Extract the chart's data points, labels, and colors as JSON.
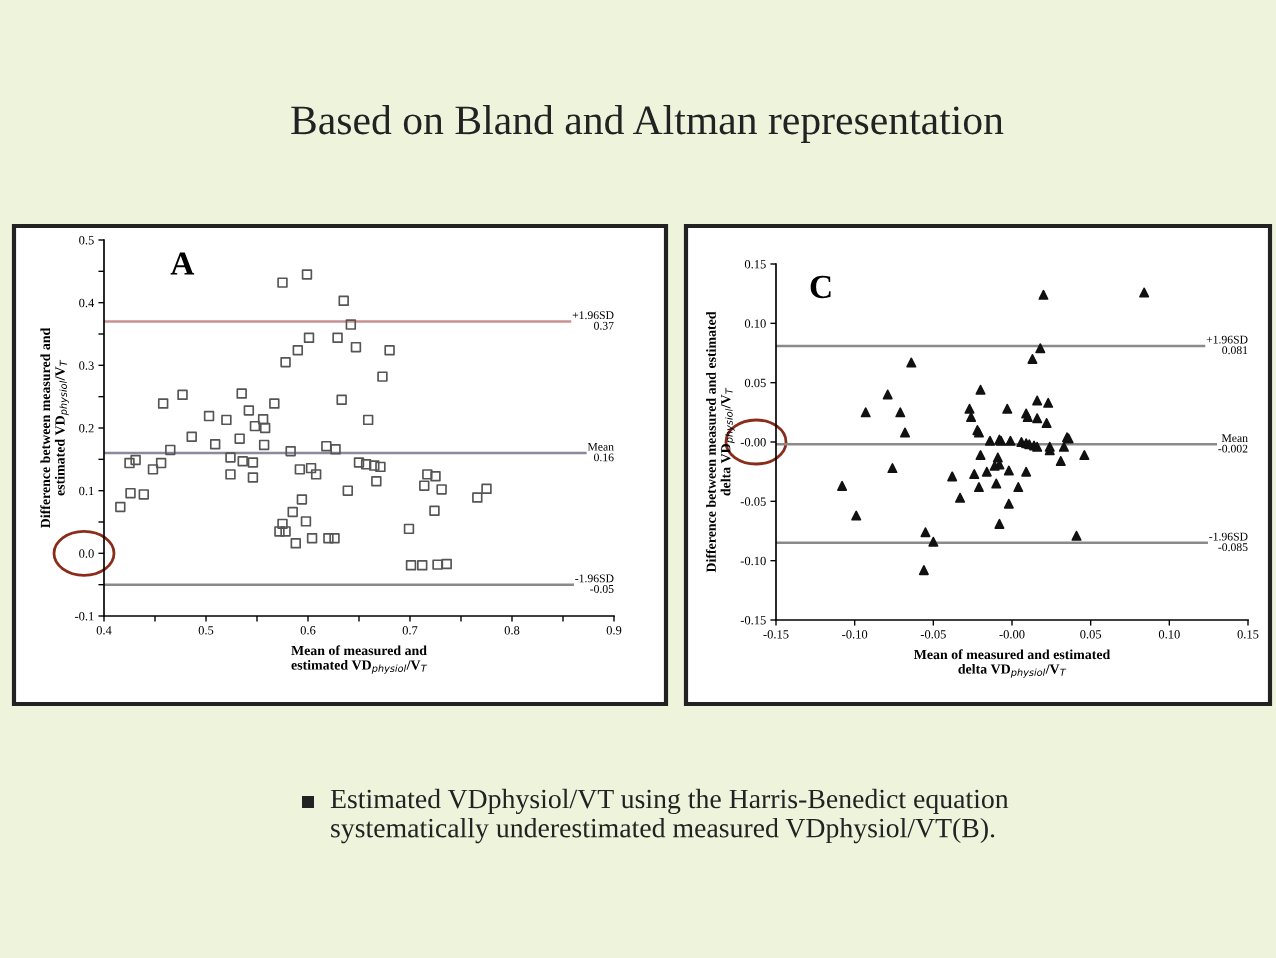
{
  "chart_data": [
    {
      "type": "scatter",
      "title": "A",
      "xlabel": "Mean of measured and\nestimated VD$_{physiol}$/V$_{T}$",
      "ylabel": "Difference between measured and\nestimated VD$_{physiol}$/V$_{T}$",
      "annotations": [
        "Based on Bland and Altman representation"
      ],
      "marker": "square",
      "grid": false,
      "legend": false,
      "xlim": [
        0.4,
        0.9
      ],
      "ylim": [
        -0.1,
        0.5
      ],
      "xticks": [
        0.4,
        {
          "value": 0.45,
          "label": null
        },
        0.5,
        {
          "value": 0.55,
          "label": null
        },
        0.6,
        {
          "value": 0.65,
          "label": null
        },
        0.7,
        {
          "value": 0.75,
          "label": null
        },
        0.8,
        {
          "value": 0.85,
          "label": null
        },
        0.9
      ],
      "yticks": [
        {
          "value": -0.1,
          "label": "-0.1"
        },
        {
          "value": -0.05,
          "label": null
        },
        {
          "value": 0.0,
          "label": "0.0"
        },
        {
          "value": 0.05,
          "label": null
        },
        0.1,
        {
          "value": 0.15,
          "label": null
        },
        0.2,
        {
          "value": 0.25,
          "label": null
        },
        0.3,
        {
          "value": 0.35,
          "label": null
        },
        0.4,
        {
          "value": 0.45,
          "label": null
        },
        0.5
      ],
      "ref_lines": [
        {
          "axis": "y",
          "value": 0.37,
          "label": "+1.96SD\n0.37",
          "color": "#c89090"
        },
        {
          "axis": "y",
          "value": 0.16,
          "label": "Mean\n0.16",
          "color": "#8a8a9a"
        },
        {
          "axis": "y",
          "value": -0.05,
          "label": "-1.96SD\n-0.05",
          "color": "#8a8a8a"
        }
      ],
      "series": [
        {
          "color": "#555555",
          "x": [
            0.575,
            0.599,
            0.635,
            0.642,
            0.601,
            0.629,
            0.647,
            0.59,
            0.68,
            0.578,
            0.673,
            0.633,
            0.458,
            0.477,
            0.535,
            0.567,
            0.542,
            0.503,
            0.52,
            0.556,
            0.548,
            0.558,
            0.659,
            0.486,
            0.509,
            0.533,
            0.557,
            0.465,
            0.583,
            0.618,
            0.627,
            0.425,
            0.431,
            0.456,
            0.448,
            0.524,
            0.536,
            0.546,
            0.65,
            0.657,
            0.665,
            0.671,
            0.592,
            0.603,
            0.608,
            0.524,
            0.546,
            0.667,
            0.717,
            0.725,
            0.714,
            0.731,
            0.426,
            0.439,
            0.416,
            0.639,
            0.775,
            0.766,
            0.594,
            0.585,
            0.724,
            0.575,
            0.598,
            0.572,
            0.578,
            0.588,
            0.604,
            0.62,
            0.626,
            0.699,
            0.701,
            0.712,
            0.727,
            0.736
          ],
          "values": [
            0.432,
            0.445,
            0.403,
            0.365,
            0.344,
            0.344,
            0.329,
            0.324,
            0.324,
            0.305,
            0.282,
            0.245,
            0.239,
            0.253,
            0.255,
            0.239,
            0.228,
            0.219,
            0.213,
            0.214,
            0.203,
            0.2,
            0.213,
            0.186,
            0.174,
            0.183,
            0.173,
            0.165,
            0.163,
            0.171,
            0.166,
            0.144,
            0.149,
            0.144,
            0.134,
            0.153,
            0.147,
            0.145,
            0.145,
            0.142,
            0.14,
            0.138,
            0.134,
            0.136,
            0.126,
            0.126,
            0.121,
            0.115,
            0.126,
            0.123,
            0.108,
            0.102,
            0.096,
            0.094,
            0.074,
            0.1,
            0.103,
            0.089,
            0.086,
            0.066,
            0.068,
            0.047,
            0.051,
            0.035,
            0.035,
            0.016,
            0.024,
            0.024,
            0.024,
            0.039,
            -0.019,
            -0.019,
            -0.018,
            -0.017
          ]
        }
      ]
    },
    {
      "type": "scatter",
      "title": "C",
      "xlabel": "Mean of measured and estimated\ndelta VD$_{physiol}$/V$_{T}$",
      "ylabel": "Difference between measured and estimated\ndelta VD$_{physiol}$/V$_{T}$",
      "annotations": [
        "Estimated VDphysiol/VT using the Harris-Benedict equation\nsystematically underestimated measured VDphysiol/VT(B)."
      ],
      "marker": "triangle",
      "grid": false,
      "legend": false,
      "xlim": [
        -0.15,
        0.15
      ],
      "ylim": [
        -0.15,
        0.15
      ],
      "xticks": [
        {
          "value": -0.15,
          "label": "-0.15"
        },
        {
          "value": -0.1,
          "label": "-0.10"
        },
        {
          "value": -0.05,
          "label": "-0.05"
        },
        {
          "value": 0.0,
          "label": "-0.00"
        },
        {
          "value": 0.05,
          "label": "0.05"
        },
        {
          "value": 0.1,
          "label": "0.10"
        },
        {
          "value": 0.15,
          "label": "0.15"
        }
      ],
      "yticks": [
        {
          "value": -0.15,
          "label": "-0.15"
        },
        {
          "value": -0.1,
          "label": "-0.10"
        },
        {
          "value": -0.05,
          "label": "-0.05"
        },
        {
          "value": 0.0,
          "label": "-0.00"
        },
        {
          "value": 0.05,
          "label": "0.05"
        },
        {
          "value": 0.1,
          "label": "0.10"
        },
        {
          "value": 0.15,
          "label": "0.15"
        }
      ],
      "ref_lines": [
        {
          "axis": "y",
          "value": 0.081,
          "label": "+1.96SD\n0.081",
          "color": "#8a8a8a"
        },
        {
          "axis": "y",
          "value": -0.002,
          "label": "Mean\n-0.002",
          "color": "#8a8a8a"
        },
        {
          "axis": "y",
          "value": -0.085,
          "label": "-1.96SD\n-0.085",
          "color": "#8a8a8a"
        }
      ],
      "series": [
        {
          "color": "#111111",
          "x": [
            0.02,
            0.084,
            0.018,
            0.013,
            -0.064,
            -0.02,
            -0.079,
            -0.093,
            -0.071,
            -0.068,
            -0.027,
            -0.026,
            -0.003,
            0.009,
            0.016,
            0.023,
            0.01,
            0.016,
            0.022,
            -0.022,
            -0.021,
            -0.014,
            -0.008,
            -0.007,
            -0.001,
            0.006,
            0.009,
            0.011,
            0.014,
            0.016,
            0.024,
            0.024,
            0.033,
            0.035,
            0.036,
            0.046,
            0.031,
            -0.02,
            -0.009,
            -0.008,
            -0.011,
            -0.002,
            0.009,
            -0.076,
            -0.038,
            -0.024,
            -0.016,
            -0.108,
            -0.033,
            -0.021,
            -0.01,
            0.004,
            -0.002,
            -0.099,
            -0.008,
            -0.055,
            -0.05,
            -0.056,
            0.041
          ],
          "values": [
            0.124,
            0.126,
            0.079,
            0.07,
            0.067,
            0.044,
            0.04,
            0.025,
            0.025,
            0.008,
            0.028,
            0.021,
            0.028,
            0.024,
            0.035,
            0.033,
            0.021,
            0.02,
            0.016,
            0.01,
            0.008,
            0.001,
            0.002,
            0.001,
            0.001,
            0.0,
            -0.001,
            -0.002,
            -0.003,
            -0.004,
            -0.004,
            -0.007,
            -0.004,
            0.004,
            0.003,
            -0.011,
            -0.016,
            -0.011,
            -0.013,
            -0.019,
            -0.02,
            -0.024,
            -0.025,
            -0.022,
            -0.029,
            -0.027,
            -0.025,
            -0.037,
            -0.047,
            -0.038,
            -0.035,
            -0.038,
            -0.052,
            -0.062,
            -0.069,
            -0.076,
            -0.084,
            -0.108,
            -0.079
          ]
        }
      ]
    }
  ]
}
